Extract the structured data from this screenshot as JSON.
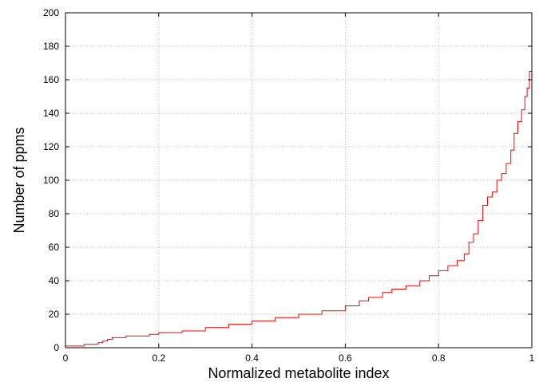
{
  "chart_data": {
    "type": "line",
    "title": "",
    "xlabel": "Normalized metabolite index",
    "ylabel": "Number of ppms",
    "xlim": [
      0,
      1
    ],
    "ylim": [
      0,
      200
    ],
    "x_ticks": [
      "0",
      "0.2",
      "0.4",
      "0.6",
      "0.8",
      "1"
    ],
    "x_tick_values": [
      0,
      0.2,
      0.4,
      0.6,
      0.8,
      1
    ],
    "y_ticks": [
      "0",
      "20",
      "40",
      "60",
      "80",
      "100",
      "120",
      "140",
      "160",
      "180",
      "200"
    ],
    "y_tick_values": [
      0,
      20,
      40,
      60,
      80,
      100,
      120,
      140,
      160,
      180,
      200
    ],
    "grid": true,
    "line_style": "step",
    "series": [
      {
        "color": "#ff0000",
        "x": [
          0,
          0.04,
          0.07,
          0.08,
          0.09,
          0.1,
          0.11,
          0.13,
          0.15,
          0.18,
          0.2,
          0.25,
          0.3,
          0.35,
          0.4,
          0.45,
          0.5,
          0.55,
          0.6,
          0.63,
          0.65,
          0.68,
          0.7,
          0.73,
          0.76,
          0.78,
          0.8,
          0.82,
          0.84,
          0.855,
          0.865,
          0.875,
          0.885,
          0.895,
          0.905,
          0.915,
          0.925,
          0.935,
          0.945,
          0.955,
          0.962,
          0.97,
          0.978,
          0.985,
          0.99,
          0.995,
          1.0
        ],
        "y": [
          1,
          2,
          3,
          4,
          5,
          6,
          6,
          7,
          7,
          8,
          9,
          10,
          12,
          14,
          16,
          18,
          20,
          22,
          25,
          28,
          30,
          33,
          35,
          37,
          40,
          43,
          46,
          49,
          52,
          56,
          63,
          68,
          76,
          85,
          90,
          93,
          100,
          104,
          110,
          118,
          128,
          135,
          142,
          150,
          155,
          165,
          182
        ]
      }
    ]
  }
}
